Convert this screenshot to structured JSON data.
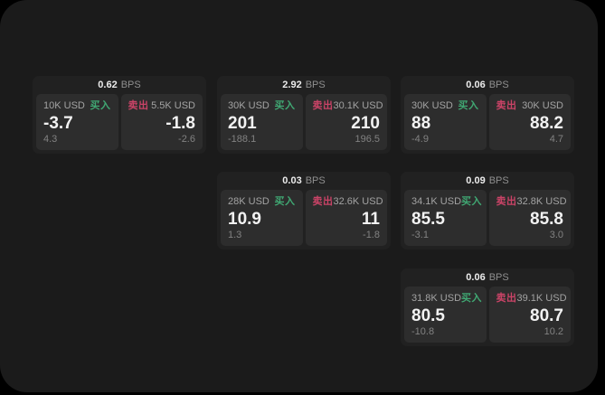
{
  "labels": {
    "bps_unit": "BPS",
    "buy": "买入",
    "sell": "卖出"
  },
  "colors": {
    "page_bg": "#000000",
    "panel_bg": "#1b1b1b",
    "card_bg": "#212121",
    "tile_bg": "#2d2d2d",
    "buy": "#40a873",
    "sell": "#ca4367"
  },
  "cards": [
    {
      "bps": "0.62",
      "grid": {
        "row": 0,
        "col": 0
      },
      "buy": {
        "size": "10K USD",
        "price": "-3.7",
        "change": "4.3"
      },
      "sell": {
        "size": "5.5K USD",
        "price": "-1.8",
        "change": "-2.6"
      }
    },
    {
      "bps": "2.92",
      "grid": {
        "row": 0,
        "col": 1
      },
      "buy": {
        "size": "30K USD",
        "price": "201",
        "change": "-188.1"
      },
      "sell": {
        "size": "30.1K USD",
        "price": "210",
        "change": "196.5"
      }
    },
    {
      "bps": "0.06",
      "grid": {
        "row": 0,
        "col": 2
      },
      "buy": {
        "size": "30K USD",
        "price": "88",
        "change": "-4.9"
      },
      "sell": {
        "size": "30K USD",
        "price": "88.2",
        "change": "4.7"
      }
    },
    {
      "bps": "0.03",
      "grid": {
        "row": 1,
        "col": 1
      },
      "buy": {
        "size": "28K USD",
        "price": "10.9",
        "change": "1.3"
      },
      "sell": {
        "size": "32.6K USD",
        "price": "11",
        "change": "-1.8"
      }
    },
    {
      "bps": "0.09",
      "grid": {
        "row": 1,
        "col": 2
      },
      "buy": {
        "size": "34.1K USD",
        "price": "85.5",
        "change": "-3.1"
      },
      "sell": {
        "size": "32.8K USD",
        "price": "85.8",
        "change": "3.0"
      }
    },
    {
      "bps": "0.06",
      "grid": {
        "row": 2,
        "col": 2
      },
      "buy": {
        "size": "31.8K USD",
        "price": "80.5",
        "change": "-10.8"
      },
      "sell": {
        "size": "39.1K USD",
        "price": "80.7",
        "change": "10.2"
      }
    }
  ]
}
